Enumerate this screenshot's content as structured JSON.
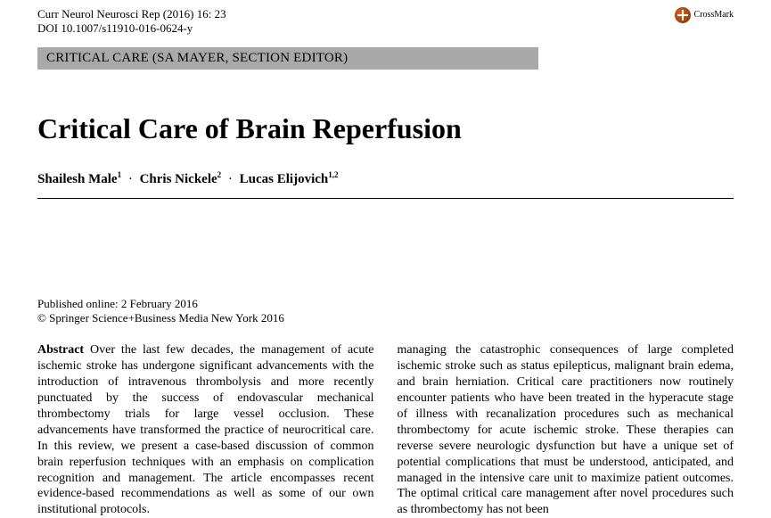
{
  "journal": {
    "citation": "Curr Neurol Neurosci Rep (2016) 16: 23",
    "doi": "DOI 10.1007/s11910-016-0624-y"
  },
  "crossmark_label": "CrossMark",
  "section_header": "CRITICAL CARE (SA MAYER, SECTION EDITOR)",
  "title": "Critical Care of Brain Reperfusion",
  "authors": [
    {
      "name": "Shailesh Male",
      "affil": "1"
    },
    {
      "name": "Chris Nickele",
      "affil": "2"
    },
    {
      "name": "Lucas Elijovich",
      "affil": "1,2"
    }
  ],
  "separator": "·",
  "published_online": "Published online: 2 February 2016",
  "copyright": "© Springer Science+Business Media New York 2016",
  "abstract_label": "Abstract",
  "abstract_left": "Over the last few decades, the management of acute ischemic stroke has undergone significant advancements with the introduction of intravenous thrombolysis and more recently punctuated by the success of endovascular mechanical thrombectomy trials for large vessel occlusion. These advancements have transformed the practice of neurocritical care. In this review, we present a case-based discussion of common brain reperfusion techniques with an emphasis on complication recognition and management. The article encompasses recent evidence-based recommendations as well as some of our own institutional protocols.",
  "abstract_right": "managing the catastrophic consequences of large completed ischemic stroke such as status epilepticus, malignant brain edema, and brain herniation. Critical care practitioners now routinely encounter patients who have been treated in the hyperacute stage of illness with recanalization procedures such as mechanical thrombectomy for acute ischemic stroke. These therapies can reverse severe neurologic dysfunction but have a unique set of potential complications that must be understood, anticipated, and managed in the intensive care unit to maximize patient outcomes. The optimal critical care management after novel procedures such as thrombectomy has not been"
}
